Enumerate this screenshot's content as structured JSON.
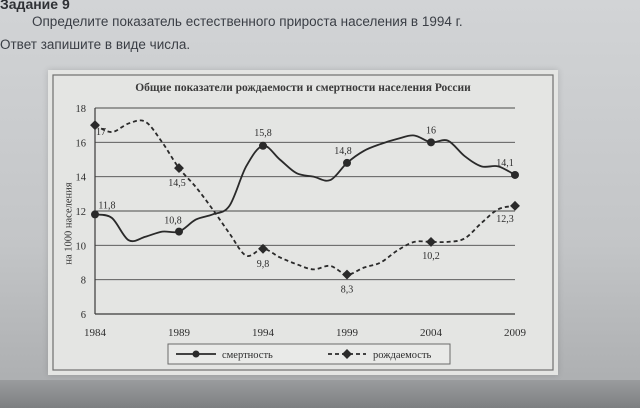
{
  "task": {
    "heading": "Задание 9",
    "line1": "Определите показатель естественного прироста населения в 1994 г.",
    "line2": "Ответ запишите в виде числа."
  },
  "chart_data": {
    "type": "line",
    "title": "Общие показатели рождаемости и смертности населения России",
    "ylabel": "на 1000 населения",
    "xlabel": "",
    "xlim": [
      1984,
      2009
    ],
    "ylim": [
      6,
      18
    ],
    "x_ticks": [
      1984,
      1989,
      1994,
      1999,
      2004,
      2009
    ],
    "y_ticks": [
      6,
      8,
      10,
      12,
      14,
      16,
      18
    ],
    "grid": true,
    "legend_position": "bottom-center",
    "series": [
      {
        "name": "смертность",
        "style": "solid",
        "color": "#2a2a2a",
        "points": [
          {
            "x": 1984,
            "y": 11.8,
            "label": "11,8"
          },
          {
            "x": 1985,
            "y": 11.6
          },
          {
            "x": 1986,
            "y": 10.3
          },
          {
            "x": 1987,
            "y": 10.5
          },
          {
            "x": 1988,
            "y": 10.8
          },
          {
            "x": 1989,
            "y": 10.8,
            "label": "10,8"
          },
          {
            "x": 1990,
            "y": 11.5
          },
          {
            "x": 1991,
            "y": 11.8
          },
          {
            "x": 1992,
            "y": 12.3
          },
          {
            "x": 1993,
            "y": 14.6
          },
          {
            "x": 1994,
            "y": 15.8,
            "label": "15,8"
          },
          {
            "x": 1995,
            "y": 15.0
          },
          {
            "x": 1996,
            "y": 14.2
          },
          {
            "x": 1997,
            "y": 14.0
          },
          {
            "x": 1998,
            "y": 13.8
          },
          {
            "x": 1999,
            "y": 14.8,
            "label": "14,8"
          },
          {
            "x": 2000,
            "y": 15.5
          },
          {
            "x": 2001,
            "y": 15.9
          },
          {
            "x": 2002,
            "y": 16.2
          },
          {
            "x": 2003,
            "y": 16.4
          },
          {
            "x": 2004,
            "y": 16.0,
            "label": "16"
          },
          {
            "x": 2005,
            "y": 16.1
          },
          {
            "x": 2006,
            "y": 15.2
          },
          {
            "x": 2007,
            "y": 14.6
          },
          {
            "x": 2008,
            "y": 14.6
          },
          {
            "x": 2009,
            "y": 14.1,
            "label": "14,1"
          }
        ]
      },
      {
        "name": "рождаемость",
        "style": "dashed",
        "color": "#2a2a2a",
        "points": [
          {
            "x": 1984,
            "y": 17.0,
            "label": "17"
          },
          {
            "x": 1985,
            "y": 16.6
          },
          {
            "x": 1986,
            "y": 17.1
          },
          {
            "x": 1987,
            "y": 17.2
          },
          {
            "x": 1988,
            "y": 16.0
          },
          {
            "x": 1989,
            "y": 14.5,
            "label": "14,5"
          },
          {
            "x": 1990,
            "y": 13.4
          },
          {
            "x": 1991,
            "y": 12.1
          },
          {
            "x": 1992,
            "y": 10.7
          },
          {
            "x": 1993,
            "y": 9.4
          },
          {
            "x": 1994,
            "y": 9.8,
            "label": "9,8"
          },
          {
            "x": 1995,
            "y": 9.3
          },
          {
            "x": 1996,
            "y": 8.9
          },
          {
            "x": 1997,
            "y": 8.6
          },
          {
            "x": 1998,
            "y": 8.8
          },
          {
            "x": 1999,
            "y": 8.3,
            "label": "8,3"
          },
          {
            "x": 2000,
            "y": 8.7
          },
          {
            "x": 2001,
            "y": 9.0
          },
          {
            "x": 2002,
            "y": 9.7
          },
          {
            "x": 2003,
            "y": 10.2
          },
          {
            "x": 2004,
            "y": 10.2,
            "label": "10,2"
          },
          {
            "x": 2005,
            "y": 10.2
          },
          {
            "x": 2006,
            "y": 10.4
          },
          {
            "x": 2007,
            "y": 11.3
          },
          {
            "x": 2008,
            "y": 12.1
          },
          {
            "x": 2009,
            "y": 12.3,
            "label": "12,3"
          }
        ]
      }
    ]
  }
}
